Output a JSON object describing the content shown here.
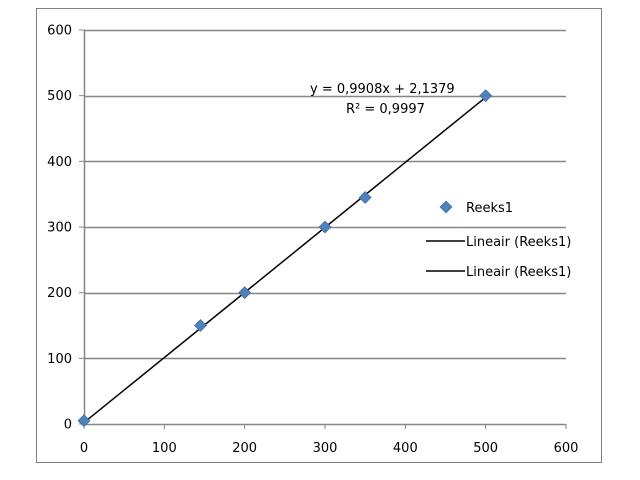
{
  "chart_data": {
    "type": "scatter",
    "title": "",
    "xlabel": "",
    "ylabel": "",
    "xlim": [
      0,
      600
    ],
    "ylim": [
      0,
      600
    ],
    "x_ticks": [
      0,
      100,
      200,
      300,
      400,
      500,
      600
    ],
    "y_ticks": [
      0,
      100,
      200,
      300,
      400,
      500,
      600
    ],
    "x_tick_labels": [
      "0",
      "100",
      "200",
      "300",
      "400",
      "500",
      "600"
    ],
    "y_tick_labels": [
      "0",
      "100",
      "200",
      "300",
      "400",
      "500",
      "600"
    ],
    "grid": "horizontal",
    "legend_position": "right",
    "series": [
      {
        "name": "Reeks1",
        "marker": "diamond",
        "color": "#4f81bd",
        "x": [
          0,
          145,
          200,
          300,
          350,
          500
        ],
        "y": [
          5,
          150,
          200,
          300,
          345,
          500
        ]
      }
    ],
    "trendline": {
      "name": "Lineair (Reeks1)",
      "slope": 0.9908,
      "intercept": 2.1379,
      "x_range": [
        0,
        500
      ],
      "color": "#000000"
    },
    "equation_label": "y = 0,9908x + 2,1379",
    "r2_label": "R² = 0,9997",
    "legend": [
      {
        "label": "Reeks1",
        "symbol": "diamond",
        "color": "#4f81bd"
      },
      {
        "label": "Lineair (Reeks1)",
        "symbol": "line",
        "color": "#000000"
      },
      {
        "label": "Lineair (Reeks1)",
        "symbol": "line",
        "color": "#000000"
      }
    ]
  }
}
